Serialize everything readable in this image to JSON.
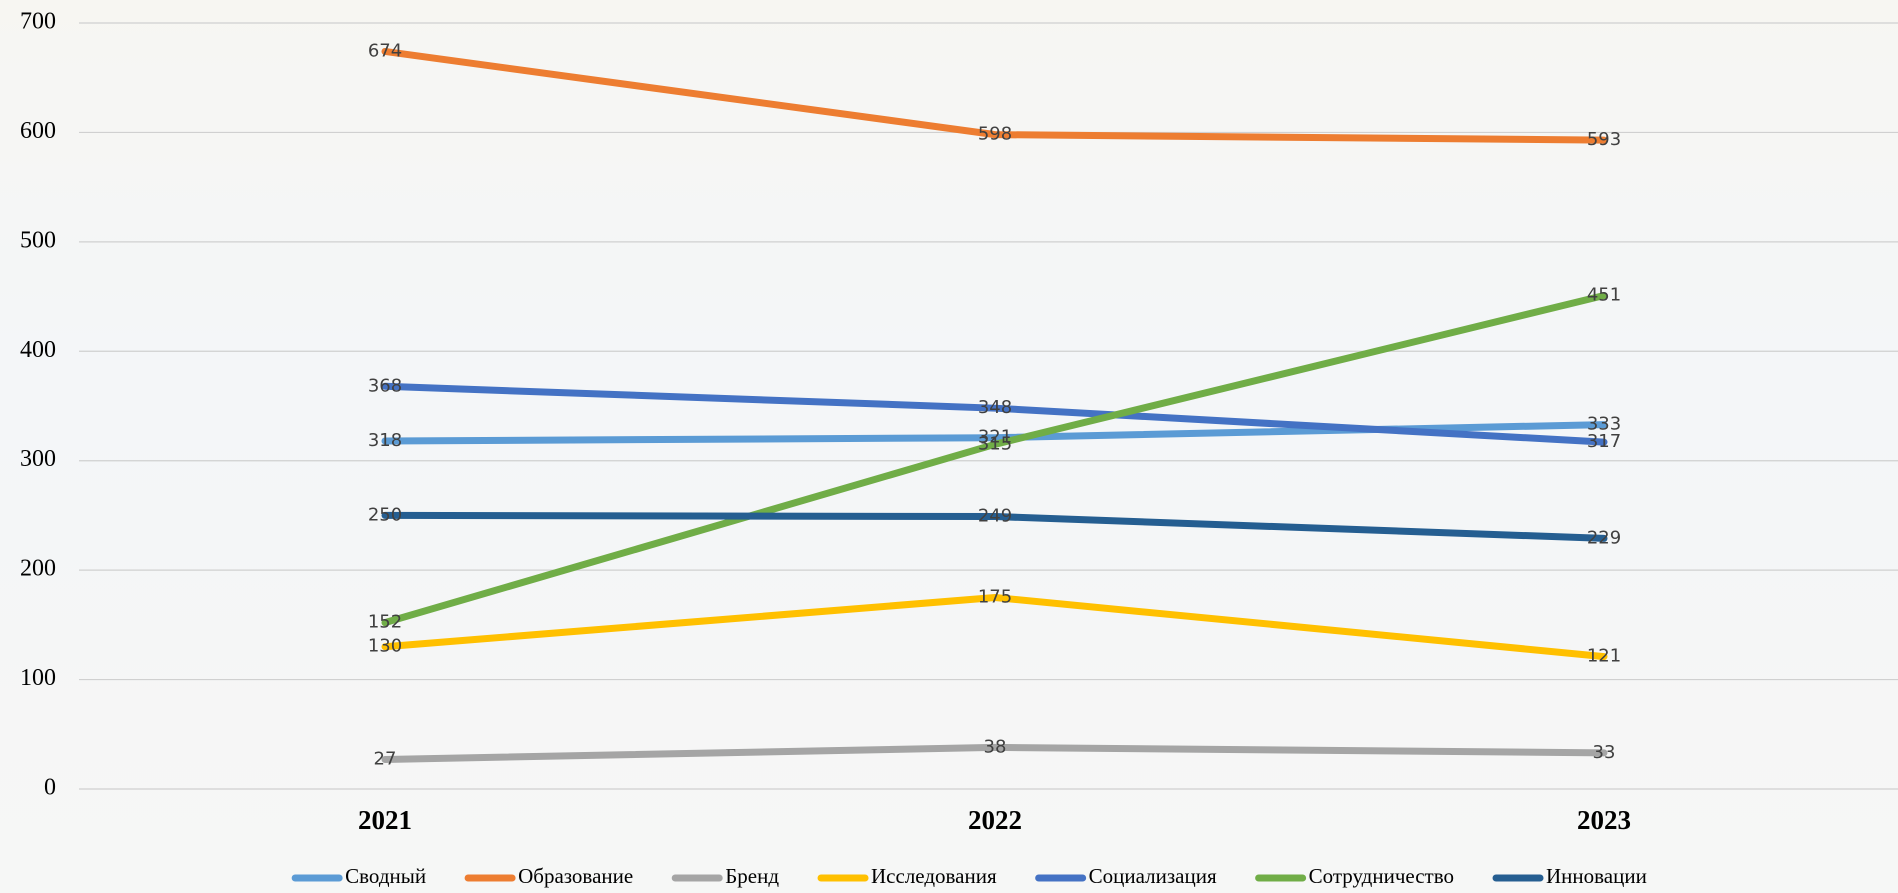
{
  "chart_data": {
    "type": "line",
    "categories": [
      "2021",
      "2022",
      "2023"
    ],
    "ylim": [
      0,
      700
    ],
    "yticks": [
      0,
      100,
      200,
      300,
      400,
      500,
      600,
      700
    ],
    "grid": true,
    "legend": "bottom",
    "series": [
      {
        "name": "Сводный",
        "color": "#5B9BD5",
        "values": [
          318,
          321,
          333
        ]
      },
      {
        "name": "Образование",
        "color": "#ED7D31",
        "values": [
          674,
          598,
          593
        ]
      },
      {
        "name": "Бренд",
        "color": "#A5A5A5",
        "values": [
          27,
          38,
          33
        ]
      },
      {
        "name": "Исследования",
        "color": "#FFC000",
        "values": [
          130,
          175,
          121
        ]
      },
      {
        "name": "Социализация",
        "color": "#4472C4",
        "values": [
          368,
          348,
          317
        ]
      },
      {
        "name": "Сотрудничество",
        "color": "#70AD47",
        "values": [
          152,
          315,
          451
        ]
      },
      {
        "name": "Инновации",
        "color": "#255E91",
        "values": [
          250,
          249,
          229
        ]
      }
    ]
  }
}
